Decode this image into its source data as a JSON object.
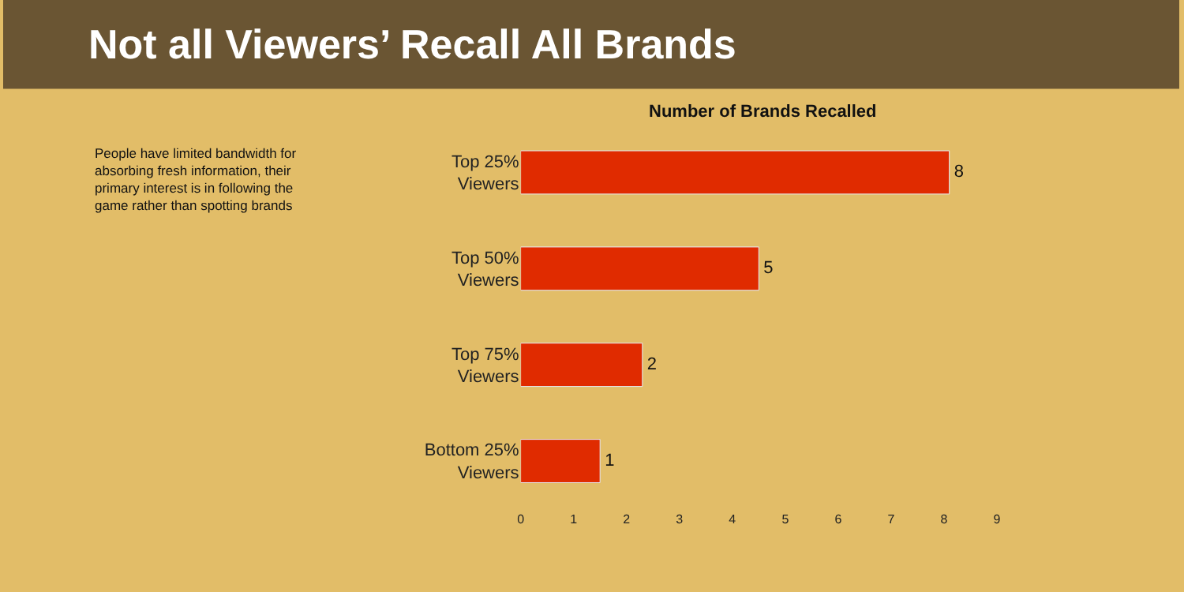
{
  "chart_data": {
    "type": "bar",
    "orientation": "horizontal",
    "title": "Not all Viewers’ Recall All Brands",
    "subtitle": "Number of Brands Recalled",
    "categories": [
      "Top 25% Viewers",
      "Top 50% Viewers",
      "Top 75% Viewers",
      "Bottom 25% Viewers"
    ],
    "values": [
      8.1,
      4.5,
      2.3,
      1.5
    ],
    "value_labels": [
      "8",
      "5",
      "2",
      "1"
    ],
    "color": "#e02b00",
    "xlim": [
      0,
      9
    ],
    "xticks": [
      0,
      1,
      2,
      3,
      4,
      5,
      6,
      7,
      8,
      9
    ],
    "grid": false,
    "legend": false,
    "annotations": [
      "People have limited bandwidth for absorbing fresh information, their primary interest is in following the game rather than spotting brands"
    ]
  }
}
